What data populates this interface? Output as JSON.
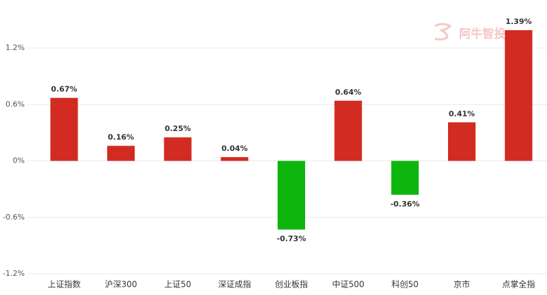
{
  "chart_data": {
    "type": "bar",
    "watermark": "阿牛智投",
    "categories": [
      "上证指数",
      "沪深300",
      "上证50",
      "深证成指",
      "创业板指",
      "中证500",
      "科创50",
      "京市",
      "点掌全指"
    ],
    "values": [
      0.67,
      0.16,
      0.25,
      0.04,
      -0.73,
      0.64,
      -0.36,
      0.41,
      1.39
    ],
    "value_labels": [
      "0.67%",
      "0.16%",
      "0.25%",
      "0.04%",
      "-0.73%",
      "0.64%",
      "-0.36%",
      "0.41%",
      "1.39%"
    ],
    "positive_color": "#d22b21",
    "negative_color": "#0db50d",
    "ylim": [
      -1.2,
      1.2
    ],
    "yticks": [
      {
        "value": -1.2,
        "label": "-1.2%"
      },
      {
        "value": -0.6,
        "label": "-0.6%"
      },
      {
        "value": 0,
        "label": "0%"
      },
      {
        "value": 0.6,
        "label": "0.6%"
      },
      {
        "value": 1.2,
        "label": "1.2%"
      }
    ],
    "grid": true
  }
}
